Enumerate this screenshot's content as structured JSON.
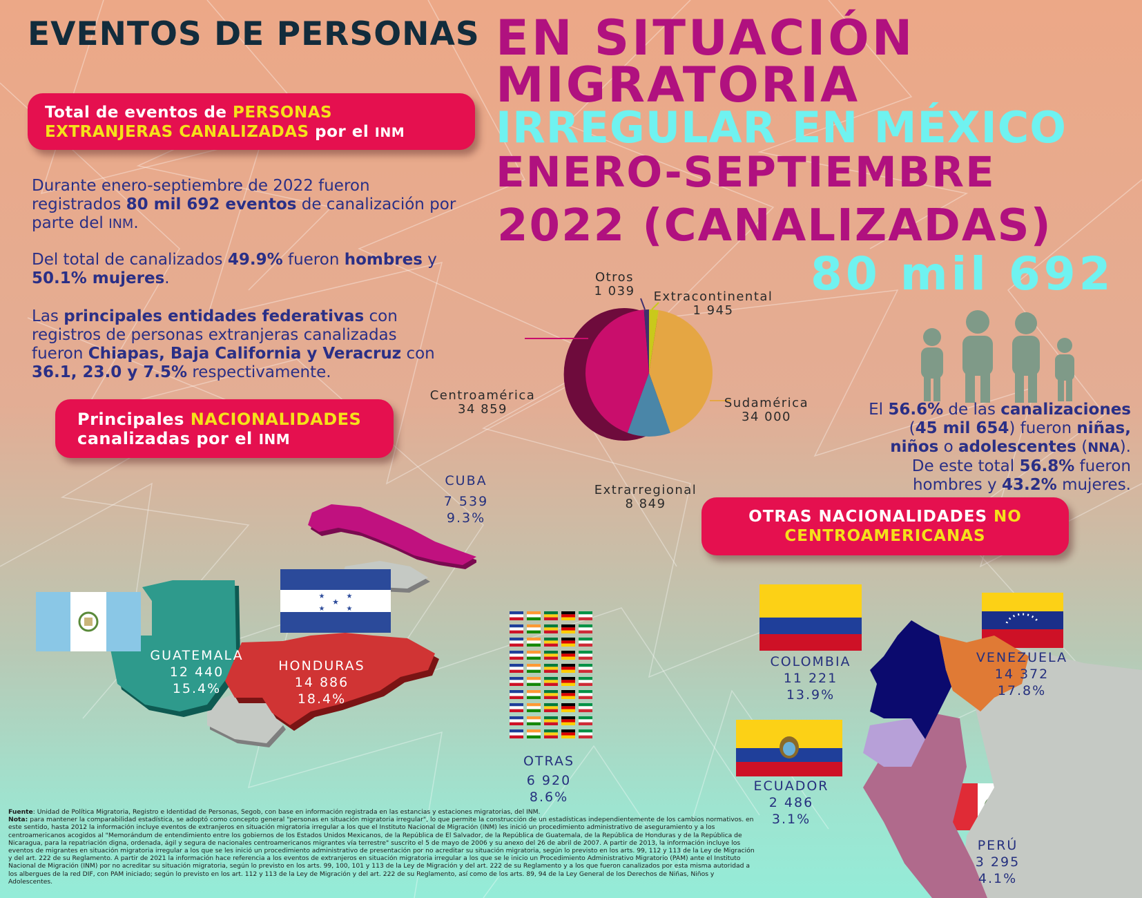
{
  "title": {
    "line1": "EVENTOS DE PERSONAS",
    "line2": "EN SITUACIÓN",
    "line3": "MIGRATORIA",
    "line4": "IRREGULAR EN MÉXICO",
    "line5": "ENERO-SEPTIEMBRE",
    "line6": "2022 (CANALIZADAS)",
    "total": "80 mil 692"
  },
  "colors": {
    "magenta": "#b0117f",
    "cyan": "#6ff2f0",
    "navy": "#122c3c",
    "pill": "#e5104f",
    "yellow": "#f5e11a",
    "text_blue": "#2a2f86"
  },
  "pill_total": {
    "a": "Total de eventos de ",
    "b": "PERSONAS",
    "c": "EXTRANJERAS CANALIZADAS",
    "d": " por el ",
    "e": "INM"
  },
  "intro": {
    "p1a": "Durante enero-septiembre de 2022 fueron registrados ",
    "p1b": "80 mil 692 eventos",
    "p1c": " de canalización por parte del ",
    "p1d": "INM",
    "p1e": ".",
    "p2a": "Del total de canalizados ",
    "p2b": "49.9%",
    "p2c": " fueron ",
    "p2d": "hombres",
    "p2e": " y ",
    "p2f": "50.1% mujeres",
    "p2g": ".",
    "p3a": "Las ",
    "p3b": "principales entidades federativas",
    "p3c": " con registros de personas extranjeras canalizadas fueron ",
    "p3d": "Chiapas, Baja California y Veracruz",
    "p3e": " con ",
    "p3f": "36.1, 23.0 y 7.5%",
    "p3g": " respectivamente."
  },
  "pill_nac": {
    "a": "Principales ",
    "b": "NACIONALIDADES",
    "c": "canalizadas por el ",
    "d": "INM"
  },
  "pill_otras": {
    "a": "OTRAS NACIONALIDADES ",
    "b": "NO",
    "c": "CENTROAMERICANAS"
  },
  "chart_data": {
    "type": "pie",
    "slices": [
      {
        "label": "Extracontinental",
        "value": 1945,
        "display": "1 945",
        "color": "#c9c91b"
      },
      {
        "label": "Sudamérica",
        "value": 34000,
        "display": "34 000",
        "color": "#e5a643"
      },
      {
        "label": "Extrarregional",
        "value": 8849,
        "display": "8 849",
        "color": "#4a86a8"
      },
      {
        "label": "Centroamérica",
        "value": 34859,
        "display": "34 859",
        "color": "#c90e6c"
      },
      {
        "label": "Otros",
        "value": 1039,
        "display": "1 039",
        "color": "#3f2f6e"
      }
    ]
  },
  "nna": {
    "a": "El ",
    "b": "56.6%",
    "c": " de las ",
    "d": "canalizaciones",
    "e": "(",
    "f": "45 mil 654",
    "g": ") fueron ",
    "h": "niñas,",
    "i": "niños",
    "j": " o ",
    "k": "adolescentes",
    "l": " (",
    "m": "NNA",
    "n": ").",
    "o": "De este total ",
    "p": "56.8%",
    "q": " fueron",
    "r": "hombres y ",
    "s": "43.2%",
    "t": " mujeres."
  },
  "countries": {
    "cuba": {
      "name": "CUBA",
      "value": "7 539",
      "pct": "9.3%"
    },
    "guatemala": {
      "name": "GUATEMALA",
      "value": "12 440",
      "pct": "15.4%"
    },
    "honduras": {
      "name": "HONDURAS",
      "value": "14 886",
      "pct": "18.4%"
    },
    "otras": {
      "name": "OTRAS",
      "value": "6 920",
      "pct": "8.6%"
    },
    "colombia": {
      "name": "COLOMBIA",
      "value": "11 221",
      "pct": "13.9%"
    },
    "venezuela": {
      "name": "VENEZUELA",
      "value": "14 372",
      "pct": "17.8%"
    },
    "ecuador": {
      "name": "ECUADOR",
      "value": "2 486",
      "pct": "3.1%"
    },
    "peru": {
      "name": "PERÚ",
      "value": "3 295",
      "pct": "4.1%"
    }
  },
  "footer": {
    "fuente_label": "Fuente",
    "fuente": ": Unidad de Política Migratoria, Registro e Identidad de Personas, Segob, con base en información registrada en las estancias y estaciones migratorias, del INM.",
    "nota_label": "Nota:",
    "nota": " para mantener la comparabilidad estadística, se adoptó como concepto general \"personas en situación migratoria irregular\", lo que permite la construcción de un estadísticas independientemente de los cambios normativos. en este sentido, hasta 2012 la información incluye eventos de extranjeros en situación migratoria irregular a los que el Instituto Nacional de Migración (INM) les inició un procedimiento administrativo de aseguramiento y a los centroamericanos acogidos al \"Memorándum de entendimiento entre los gobiernos de los Estados Unidos Mexicanos, de la República de El Salvador, de la República de Guatemala, de la República de Honduras y de la República de Nicaragua, para la repatriación digna, ordenada, ágil y segura de nacionales centroamericanos migrantes vía terrestre\" suscrito el 5 de mayo de 2006 y su anexo del 26 de abril de 2007. A partir de 2013, la información incluye los eventos de migrantes en situación migratoria irregular a los que se les inició un procedimiento administrativo de presentación por no acreditar su situación migratoria, según lo previsto en los arts. 99, 112 y 113 de la Ley de Migración y del art. 222 de su Reglamento. A partir de 2021 la información hace referencia a los eventos de extranjeros en situación migratoria irregular a los que se le inicio un Procedimiento Administrativo Migratorio (PAM) ante el Instituto Nacional de Migración (INM) por no acreditar su situación migratoria, según lo previsto en los arts. 99, 100, 101 y 113 de la Ley de Migración y del art. 222 de su Reglamento y a los que fueron canalizados por esta misma autoridad a los albergues de la red DIF, con PAM iniciado; según lo previsto en los art. 112 y 113 de la Ley de Migración y del art. 222 de su Reglamento, así como de los arts. 89, 94 de la Ley General de los Derechos de Niñas, Niños y Adolescentes."
  }
}
